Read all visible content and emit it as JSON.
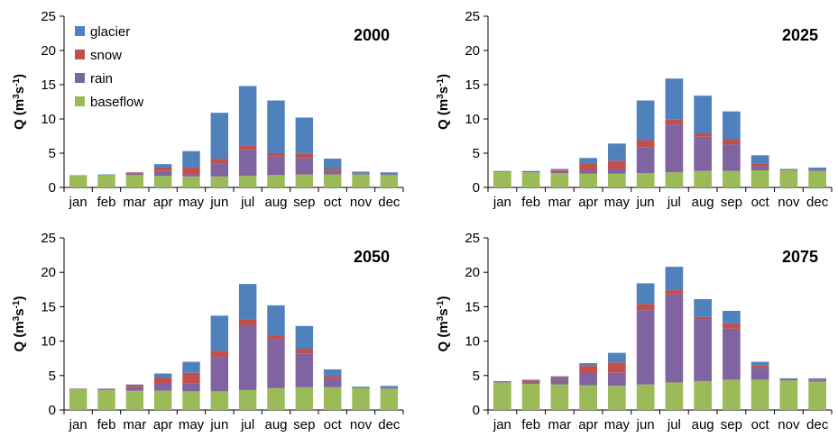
{
  "colors": {
    "glacier": "#4f81bd",
    "snow": "#c0504d",
    "rain": "#8064a2",
    "baseflow": "#9bbb59"
  },
  "chart_data": [
    {
      "type": "bar",
      "stacked": true,
      "title": "2000",
      "ylabel": "Q (m3s-1)",
      "ylim": [
        0,
        25
      ],
      "yticks": [
        0,
        5,
        10,
        15,
        20,
        25
      ],
      "grid": false,
      "legend": "top-left",
      "categories": [
        "jan",
        "feb",
        "mar",
        "apr",
        "may",
        "jun",
        "jul",
        "aug",
        "sep",
        "oct",
        "nov",
        "dec"
      ],
      "series": [
        {
          "name": "baseflow",
          "values": [
            1.8,
            1.8,
            1.8,
            1.7,
            1.6,
            1.6,
            1.7,
            1.8,
            1.9,
            1.9,
            1.9,
            1.8
          ]
        },
        {
          "name": "rain",
          "values": [
            0.0,
            0.0,
            0.2,
            0.7,
            0.3,
            1.9,
            3.8,
            2.7,
            2.4,
            0.5,
            0.1,
            0.1
          ]
        },
        {
          "name": "snow",
          "values": [
            0.0,
            0.0,
            0.2,
            0.5,
            1.0,
            0.7,
            0.6,
            0.5,
            0.6,
            0.3,
            0.0,
            0.0
          ]
        },
        {
          "name": "glacier",
          "values": [
            0.0,
            0.1,
            0.0,
            0.5,
            2.4,
            6.7,
            8.7,
            7.7,
            5.3,
            1.5,
            0.3,
            0.3
          ]
        }
      ]
    },
    {
      "type": "bar",
      "stacked": true,
      "title": "2025",
      "ylabel": "Q (m3s-1)",
      "ylim": [
        0,
        25
      ],
      "yticks": [
        0,
        5,
        10,
        15,
        20,
        25
      ],
      "grid": false,
      "categories": [
        "jan",
        "feb",
        "mar",
        "apr",
        "may",
        "jun",
        "jul",
        "aug",
        "sep",
        "oct",
        "nov",
        "dec"
      ],
      "series": [
        {
          "name": "baseflow",
          "values": [
            2.3,
            2.2,
            2.1,
            2.0,
            2.0,
            2.1,
            2.2,
            2.4,
            2.4,
            2.5,
            2.5,
            2.4
          ]
        },
        {
          "name": "rain",
          "values": [
            0.1,
            0.1,
            0.3,
            0.5,
            0.7,
            3.8,
            7.0,
            5.0,
            3.9,
            0.6,
            0.1,
            0.2
          ]
        },
        {
          "name": "snow",
          "values": [
            0.0,
            0.0,
            0.2,
            1.0,
            1.2,
            1.0,
            0.7,
            0.5,
            0.8,
            0.4,
            0.0,
            0.0
          ]
        },
        {
          "name": "glacier",
          "values": [
            0.0,
            0.1,
            0.1,
            0.8,
            2.5,
            5.8,
            6.0,
            5.5,
            4.0,
            1.2,
            0.1,
            0.3
          ]
        }
      ]
    },
    {
      "type": "bar",
      "stacked": true,
      "title": "2050",
      "ylabel": "Q (m3s-1)",
      "ylim": [
        0,
        25
      ],
      "yticks": [
        0,
        5,
        10,
        15,
        20,
        25
      ],
      "grid": false,
      "categories": [
        "jan",
        "feb",
        "mar",
        "apr",
        "may",
        "jun",
        "jul",
        "aug",
        "sep",
        "oct",
        "nov",
        "dec"
      ],
      "series": [
        {
          "name": "baseflow",
          "values": [
            3.0,
            2.9,
            2.8,
            2.8,
            2.7,
            2.7,
            2.9,
            3.2,
            3.3,
            3.3,
            3.2,
            3.1
          ]
        },
        {
          "name": "rain",
          "values": [
            0.1,
            0.2,
            0.5,
            1.0,
            1.2,
            4.9,
            9.4,
            7.0,
            4.9,
            1.2,
            0.1,
            0.2
          ]
        },
        {
          "name": "snow",
          "values": [
            0.0,
            0.0,
            0.3,
            0.9,
            1.5,
            1.0,
            0.9,
            0.6,
            0.7,
            0.4,
            0.0,
            0.0
          ]
        },
        {
          "name": "glacier",
          "values": [
            0.0,
            0.0,
            0.1,
            0.6,
            1.6,
            5.1,
            5.1,
            4.4,
            3.3,
            1.0,
            0.1,
            0.2
          ]
        }
      ]
    },
    {
      "type": "bar",
      "stacked": true,
      "title": "2075",
      "ylabel": "Q (m3s-1)",
      "ylim": [
        0,
        25
      ],
      "yticks": [
        0,
        5,
        10,
        15,
        20,
        25
      ],
      "grid": false,
      "categories": [
        "jan",
        "feb",
        "mar",
        "apr",
        "may",
        "jun",
        "jul",
        "aug",
        "sep",
        "oct",
        "nov",
        "dec"
      ],
      "series": [
        {
          "name": "baseflow",
          "values": [
            4.0,
            3.8,
            3.7,
            3.6,
            3.5,
            3.7,
            4.0,
            4.2,
            4.4,
            4.4,
            4.3,
            4.1
          ]
        },
        {
          "name": "rain",
          "values": [
            0.1,
            0.2,
            0.7,
            1.7,
            1.9,
            10.8,
            12.8,
            8.9,
            7.4,
            1.7,
            0.2,
            0.2
          ]
        },
        {
          "name": "snow",
          "values": [
            0.0,
            0.3,
            0.3,
            1.1,
            1.5,
            0.9,
            0.6,
            0.4,
            0.8,
            0.4,
            0.0,
            0.1
          ]
        },
        {
          "name": "glacier",
          "values": [
            0.1,
            0.1,
            0.2,
            0.4,
            1.4,
            3.0,
            3.4,
            2.6,
            1.8,
            0.5,
            0.1,
            0.2
          ]
        }
      ]
    }
  ]
}
